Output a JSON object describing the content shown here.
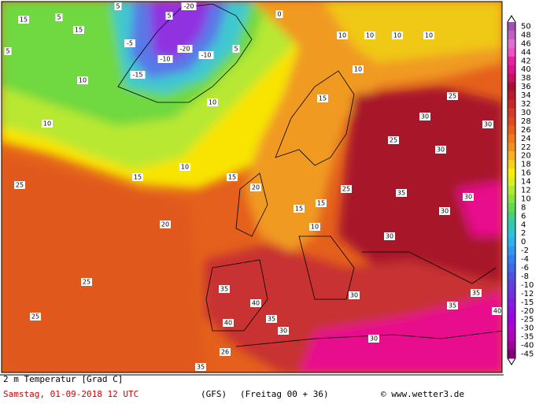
{
  "footer": {
    "field": "2 m Temperatur [Grad C]",
    "valid_time": "Samstag, 01-09-2018  12 UTC",
    "model": "(GFS)",
    "run": "(Freitag 00 + 36)",
    "source": "© www.wetter3.de"
  },
  "colorbar": {
    "labels": [
      50,
      48,
      46,
      44,
      42,
      40,
      38,
      36,
      34,
      32,
      30,
      28,
      26,
      24,
      22,
      20,
      18,
      16,
      14,
      12,
      10,
      8,
      6,
      4,
      2,
      0,
      -2,
      -4,
      -6,
      -8,
      -10,
      -12,
      -15,
      -20,
      -25,
      -30,
      -35,
      -40,
      -45
    ],
    "colors": [
      "#a050b0",
      "#c060c0",
      "#e070d0",
      "#f050c0",
      "#e820a0",
      "#e0108c",
      "#c8105c",
      "#a81030",
      "#b81c2c",
      "#c82828",
      "#d83828",
      "#e04820",
      "#e86018",
      "#f07818",
      "#f09020",
      "#f8b020",
      "#f8d018",
      "#f8f000",
      "#d8f020",
      "#b0e830",
      "#88e040",
      "#60d850",
      "#40d080",
      "#30c8b0",
      "#30c0d8",
      "#30b0f0",
      "#3098f0",
      "#3080f0",
      "#4068e8",
      "#5050e0",
      "#6040e0",
      "#7030e0",
      "#8020e0",
      "#9010e0",
      "#a000e0",
      "#b000d0",
      "#b000b8",
      "#a00098",
      "#800070"
    ]
  },
  "map_labels": [
    5,
    5,
    -20,
    15,
    5,
    5,
    15,
    -5,
    -10,
    -20,
    -15,
    -10,
    5,
    0,
    10,
    10,
    10,
    10,
    25,
    25,
    25,
    15,
    10,
    15,
    20,
    20,
    15,
    15,
    10,
    25,
    25,
    30,
    30,
    30,
    35,
    30,
    30,
    30,
    35,
    40,
    40,
    35,
    30,
    30,
    30,
    35,
    35,
    40,
    35,
    26,
    25,
    15,
    10,
    10,
    10,
    10
  ]
}
